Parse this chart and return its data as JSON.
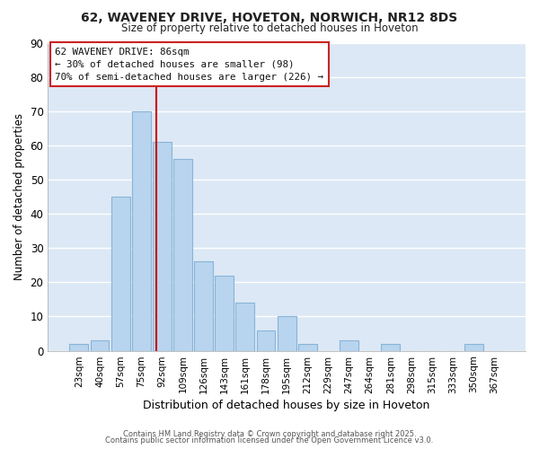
{
  "title": "62, WAVENEY DRIVE, HOVETON, NORWICH, NR12 8DS",
  "subtitle": "Size of property relative to detached houses in Hoveton",
  "xlabel": "Distribution of detached houses by size in Hoveton",
  "ylabel": "Number of detached properties",
  "bin_labels": [
    "23sqm",
    "40sqm",
    "57sqm",
    "75sqm",
    "92sqm",
    "109sqm",
    "126sqm",
    "143sqm",
    "161sqm",
    "178sqm",
    "195sqm",
    "212sqm",
    "229sqm",
    "247sqm",
    "264sqm",
    "281sqm",
    "298sqm",
    "315sqm",
    "333sqm",
    "350sqm",
    "367sqm"
  ],
  "bar_values": [
    2,
    3,
    45,
    70,
    61,
    56,
    26,
    22,
    14,
    6,
    10,
    2,
    0,
    3,
    0,
    2,
    0,
    0,
    0,
    2,
    0
  ],
  "bar_color": "#b8d4ee",
  "bar_edge_color": "#88b4d8",
  "plot_bg_color": "#dce8f5",
  "fig_bg_color": "#ffffff",
  "grid_color": "#ffffff",
  "ylim": [
    0,
    90
  ],
  "yticks": [
    0,
    10,
    20,
    30,
    40,
    50,
    60,
    70,
    80,
    90
  ],
  "annotation_title": "62 WAVENEY DRIVE: 86sqm",
  "annotation_line1": "← 30% of detached houses are smaller (98)",
  "annotation_line2": "70% of semi-detached houses are larger (226) →",
  "vline_color": "#cc0000",
  "vline_x": 3.72,
  "footer1": "Contains HM Land Registry data © Crown copyright and database right 2025.",
  "footer2": "Contains public sector information licensed under the Open Government Licence v3.0."
}
